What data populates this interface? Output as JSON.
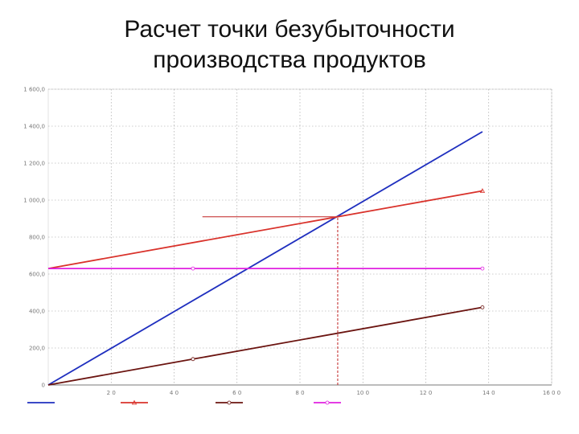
{
  "slide": {
    "title_line1": "Расчет точки безубыточности",
    "title_line2": "производства продуктов"
  },
  "chart_data": {
    "type": "line",
    "title": "Расчет точки безубыточности производства продуктов",
    "xlabel": "",
    "ylabel": "",
    "xlim": [
      0,
      16000
    ],
    "ylim": [
      0,
      1600
    ],
    "x_ticks": [
      2000,
      4000,
      6000,
      8000,
      10000,
      12000,
      14000,
      16000
    ],
    "x_tick_labels": [
      "2 0",
      "4 0",
      "6 0",
      "8 0",
      "10 0",
      "12 0",
      "14 0",
      "16 0 0"
    ],
    "y_ticks": [
      0,
      200,
      400,
      600,
      800,
      1000,
      1200,
      1400,
      1600
    ],
    "y_tick_labels": [
      "0",
      "200,0",
      "400,0",
      "600,0",
      "800,0",
      "1 000,0",
      "1 200,0",
      "1 400,0",
      "1 600,0"
    ],
    "grid": true,
    "legend_position": "bottom",
    "series": [
      {
        "name": "",
        "color": "#1f2fbf",
        "marker": "none",
        "x": [
          0,
          13800
        ],
        "y": [
          0,
          1370
        ]
      },
      {
        "name": "",
        "color": "#d9322b",
        "marker": "triangle",
        "x": [
          0,
          13800
        ],
        "y": [
          630,
          1050
        ]
      },
      {
        "name": "",
        "color": "#6b1410",
        "marker": "circle",
        "x": [
          0,
          4600,
          13800
        ],
        "y": [
          0,
          140,
          420
        ]
      },
      {
        "name": "",
        "color": "#e020e0",
        "marker": "circle",
        "x": [
          0,
          4600,
          13800
        ],
        "y": [
          630,
          630,
          630
        ]
      }
    ],
    "annotations": [
      {
        "type": "hline",
        "y": 910,
        "x_from": 4900,
        "x_to": 9200,
        "color": "#c02020",
        "style": "solid"
      },
      {
        "type": "vline",
        "x": 9200,
        "y_from": 0,
        "y_to": 910,
        "color": "#c02020",
        "style": "dashed"
      }
    ]
  }
}
